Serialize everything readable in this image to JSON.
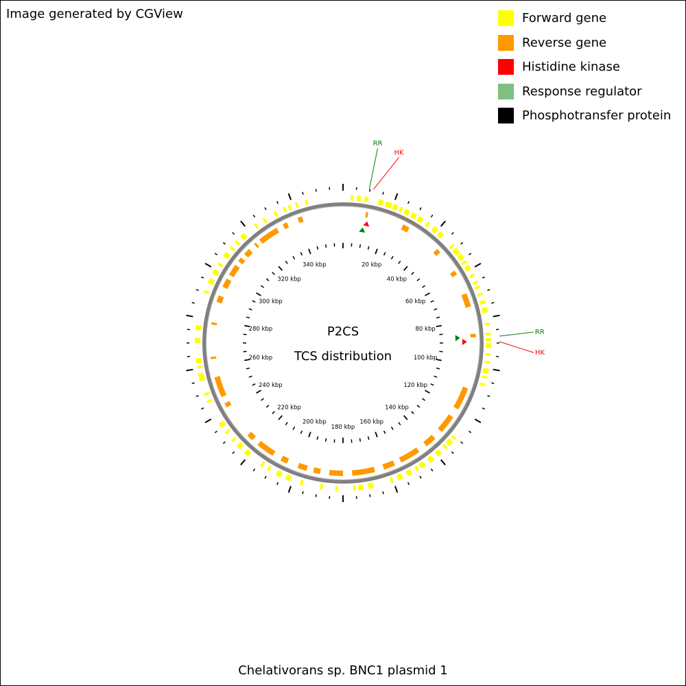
{
  "credit": "Image generated by CGView",
  "legend": [
    {
      "label": "Forward gene",
      "color": "#FFFF00"
    },
    {
      "label": "Reverse gene",
      "color": "#FF9900"
    },
    {
      "label": "Histidine kinase",
      "color": "#FF0000"
    },
    {
      "label": "Response regulator",
      "color": "#7FBF7F"
    },
    {
      "label": "Phosphotransfer protein",
      "color": "#000000"
    }
  ],
  "map": {
    "title": "Chelativorans sp. BNC1 plasmid 1",
    "center_line1": "P2CS",
    "center_line2": "TCS distribution",
    "sequence_length_kbp": 360,
    "backbone_color": "#808080",
    "tick_labels": [
      {
        "kbp": 20,
        "label": "20 kbp"
      },
      {
        "kbp": 40,
        "label": "40 kbp"
      },
      {
        "kbp": 60,
        "label": "60 kbp"
      },
      {
        "kbp": 80,
        "label": "80 kbp"
      },
      {
        "kbp": 100,
        "label": "100 kbp"
      },
      {
        "kbp": 120,
        "label": "120 kbp"
      },
      {
        "kbp": 140,
        "label": "140 kbp"
      },
      {
        "kbp": 160,
        "label": "160 kbp"
      },
      {
        "kbp": 180,
        "label": "180 kbp"
      },
      {
        "kbp": 200,
        "label": "200 kbp"
      },
      {
        "kbp": 220,
        "label": "220 kbp"
      },
      {
        "kbp": 240,
        "label": "240 kbp"
      },
      {
        "kbp": 260,
        "label": "260 kbp"
      },
      {
        "kbp": 280,
        "label": "280 kbp"
      },
      {
        "kbp": 300,
        "label": "300 kbp"
      },
      {
        "kbp": 320,
        "label": "320 kbp"
      },
      {
        "kbp": 340,
        "label": "340 kbp"
      }
    ],
    "tcs_features": [
      {
        "type": "RR",
        "label": "RR",
        "kbp": 9.7,
        "color": "#008000"
      },
      {
        "type": "HK",
        "label": "HK",
        "kbp": 11.2,
        "color": "#FF0000"
      },
      {
        "type": "RR",
        "label": "RR",
        "kbp": 87.5,
        "color": "#008000"
      },
      {
        "type": "HK",
        "label": "HK",
        "kbp": 89.5,
        "color": "#FF0000"
      }
    ],
    "forward_genes": [
      [
        3,
        4
      ],
      [
        5.5,
        7
      ],
      [
        8.5,
        10
      ],
      [
        14,
        16
      ],
      [
        17,
        19.5
      ],
      [
        20,
        22
      ],
      [
        23,
        24
      ],
      [
        25,
        27
      ],
      [
        28,
        30
      ],
      [
        31,
        33
      ],
      [
        35,
        36
      ],
      [
        38,
        40
      ],
      [
        41,
        43
      ],
      [
        48,
        49
      ],
      [
        50,
        52.5
      ],
      [
        53,
        55
      ],
      [
        56,
        57
      ],
      [
        58,
        60
      ],
      [
        62,
        63
      ],
      [
        65,
        66
      ],
      [
        67,
        68
      ],
      [
        70,
        71
      ],
      [
        73,
        74.5
      ],
      [
        76,
        78
      ],
      [
        82,
        83
      ],
      [
        86,
        87
      ],
      [
        88,
        89.5
      ],
      [
        90,
        92
      ],
      [
        94,
        95
      ],
      [
        97,
        98
      ],
      [
        100,
        102
      ],
      [
        103,
        104
      ],
      [
        106,
        107
      ],
      [
        130,
        131
      ],
      [
        132,
        134
      ],
      [
        135,
        136
      ],
      [
        138,
        140
      ],
      [
        142,
        144
      ],
      [
        146,
        148
      ],
      [
        149,
        150
      ],
      [
        152,
        154
      ],
      [
        156,
        158
      ],
      [
        160,
        161
      ],
      [
        168,
        170
      ],
      [
        172,
        174
      ],
      [
        175,
        176
      ],
      [
        182,
        183
      ],
      [
        188,
        189
      ],
      [
        196,
        197
      ],
      [
        201,
        203
      ],
      [
        205,
        207
      ],
      [
        210,
        211
      ],
      [
        213,
        214
      ],
      [
        220,
        222
      ],
      [
        224,
        226
      ],
      [
        228,
        229
      ],
      [
        232,
        233
      ],
      [
        235,
        237
      ],
      [
        246,
        247
      ],
      [
        249,
        250
      ],
      [
        255,
        258
      ],
      [
        260,
        261
      ],
      [
        262,
        264
      ],
      [
        270,
        272
      ],
      [
        275,
        277
      ],
      [
        290,
        291
      ],
      [
        294,
        296
      ],
      [
        298,
        300
      ],
      [
        302,
        303
      ],
      [
        306,
        308
      ],
      [
        310,
        311
      ],
      [
        313,
        314
      ],
      [
        316,
        318
      ],
      [
        323,
        324
      ],
      [
        327,
        328
      ],
      [
        332,
        333
      ],
      [
        336,
        337
      ],
      [
        338,
        339
      ],
      [
        341,
        342
      ],
      [
        345,
        346
      ]
    ],
    "reverse_genes": [
      [
        10,
        11
      ],
      [
        27,
        30
      ],
      [
        45,
        47
      ],
      [
        57,
        59
      ],
      [
        68,
        74
      ],
      [
        86,
        87.5
      ],
      [
        110,
        120
      ],
      [
        124,
        132
      ],
      [
        136,
        141
      ],
      [
        145,
        154
      ],
      [
        157,
        162
      ],
      [
        166,
        176
      ],
      [
        180,
        186
      ],
      [
        190,
        193
      ],
      [
        196,
        200
      ],
      [
        205,
        208
      ],
      [
        212,
        220
      ],
      [
        223,
        226
      ],
      [
        241,
        243
      ],
      [
        246,
        255
      ],
      [
        263,
        264
      ],
      [
        278,
        279
      ],
      [
        288,
        291
      ],
      [
        295,
        299
      ],
      [
        301,
        306
      ],
      [
        308,
        310
      ],
      [
        312,
        315
      ],
      [
        318,
        319
      ],
      [
        321,
        330
      ],
      [
        333,
        335
      ],
      [
        340,
        342
      ]
    ]
  }
}
